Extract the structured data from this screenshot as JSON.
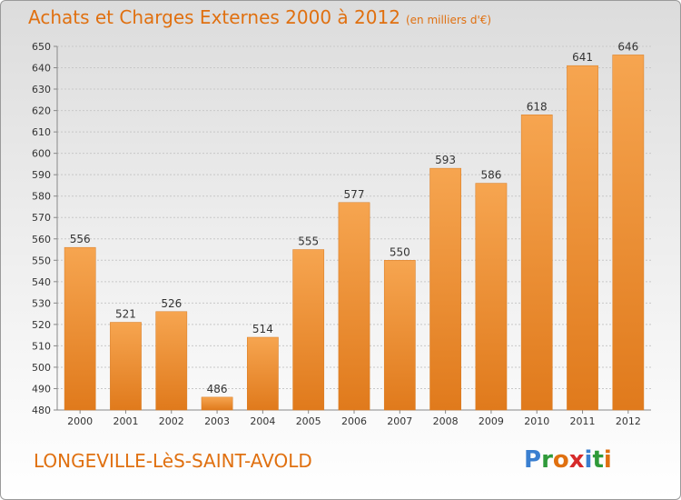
{
  "title": "Achats et Charges Externes 2000 à 2012",
  "unit_note": "(en milliers d'€)",
  "location": "LONGEVILLE-LèS-SAINT-AVOLD",
  "brand": {
    "letters": [
      "P",
      "r",
      "o",
      "x",
      "i",
      "t",
      "i"
    ],
    "colors": [
      "#3a7fd0",
      "#2f9a3a",
      "#e07010",
      "#d62a2a",
      "#3a7fd0",
      "#2f9a3a",
      "#e07010"
    ]
  },
  "colors": {
    "bar": "#f0902c",
    "accent": "#e07010"
  },
  "chart_data": {
    "type": "bar",
    "title": "Achats et Charges Externes 2000 à 2012",
    "categories": [
      "2000",
      "2001",
      "2002",
      "2003",
      "2004",
      "2005",
      "2006",
      "2007",
      "2008",
      "2009",
      "2010",
      "2011",
      "2012"
    ],
    "values": [
      556,
      521,
      526,
      486,
      514,
      555,
      577,
      550,
      593,
      586,
      618,
      641,
      646
    ],
    "ylim": [
      480,
      650
    ],
    "yticks": [
      480,
      490,
      500,
      510,
      520,
      530,
      540,
      550,
      560,
      570,
      580,
      590,
      600,
      610,
      620,
      630,
      640,
      650
    ],
    "grid": true,
    "legend": "none"
  }
}
